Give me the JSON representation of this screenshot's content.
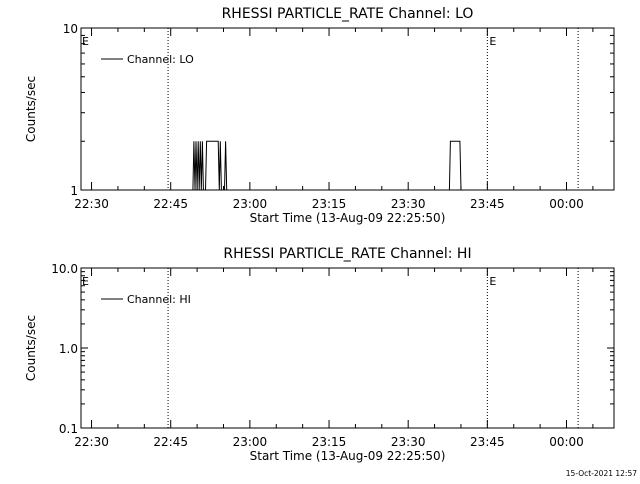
{
  "footer": {
    "timestamp": "15-Oct-2021 12:57"
  },
  "chart_data": [
    {
      "type": "line",
      "title": "RHESSI PARTICLE_RATE Channel: LO",
      "xlabel": "Start Time (13-Aug-09 22:25:50)",
      "ylabel": "Counts/sec",
      "yscale": "log",
      "ylim": [
        1,
        10
      ],
      "xlim_minutes": [
        -2,
        99
      ],
      "y_ticks": [
        {
          "v": 1,
          "label": "1"
        },
        {
          "v": 10,
          "label": "10"
        }
      ],
      "x_ticks": [
        {
          "t": 0,
          "label": "22:30"
        },
        {
          "t": 15,
          "label": "22:45"
        },
        {
          "t": 30,
          "label": "23:00"
        },
        {
          "t": 45,
          "label": "23:15"
        },
        {
          "t": 60,
          "label": "23:30"
        },
        {
          "t": 75,
          "label": "23:45"
        },
        {
          "t": 90,
          "label": "00:00"
        }
      ],
      "event_lines": [
        {
          "t": 14.5,
          "label": ""
        },
        {
          "t": 75.0,
          "label": "E"
        },
        {
          "t": 92.2,
          "label": ""
        }
      ],
      "edge_marker": "E",
      "legend": {
        "entry": "Channel: LO",
        "placement": "top-left"
      },
      "series": [
        {
          "name": "Channel: LO",
          "points": [
            [
              19.2,
              1
            ],
            [
              19.4,
              2
            ],
            [
              19.6,
              1
            ],
            [
              19.8,
              2
            ],
            [
              20.0,
              1
            ],
            [
              20.2,
              2
            ],
            [
              20.4,
              1
            ],
            [
              20.6,
              2
            ],
            [
              20.8,
              1
            ],
            [
              21.0,
              2
            ],
            [
              21.2,
              1
            ],
            [
              21.6,
              1
            ],
            [
              21.8,
              2
            ],
            [
              24.0,
              2
            ],
            [
              24.2,
              1
            ],
            [
              24.4,
              2
            ],
            [
              24.6,
              1
            ],
            [
              25.2,
              1
            ],
            [
              25.4,
              2
            ],
            [
              25.6,
              1
            ],
            [
              67.8,
              1
            ],
            [
              68.0,
              2
            ],
            [
              69.8,
              2
            ],
            [
              70.0,
              1
            ]
          ]
        }
      ]
    },
    {
      "type": "line",
      "title": "RHESSI PARTICLE_RATE Channel: HI",
      "xlabel": "Start Time (13-Aug-09 22:25:50)",
      "ylabel": "Counts/sec",
      "yscale": "log",
      "ylim": [
        0.1,
        10
      ],
      "xlim_minutes": [
        -2,
        99
      ],
      "y_ticks": [
        {
          "v": 0.1,
          "label": "0.1"
        },
        {
          "v": 1,
          "label": "1.0"
        },
        {
          "v": 10,
          "label": "10.0"
        }
      ],
      "x_ticks": [
        {
          "t": 0,
          "label": "22:30"
        },
        {
          "t": 15,
          "label": "22:45"
        },
        {
          "t": 30,
          "label": "23:00"
        },
        {
          "t": 45,
          "label": "23:15"
        },
        {
          "t": 60,
          "label": "23:30"
        },
        {
          "t": 75,
          "label": "23:45"
        },
        {
          "t": 90,
          "label": "00:00"
        }
      ],
      "event_lines": [
        {
          "t": 14.5,
          "label": ""
        },
        {
          "t": 75.0,
          "label": "E"
        },
        {
          "t": 92.2,
          "label": ""
        }
      ],
      "edge_marker": "E",
      "legend": {
        "entry": "Channel: HI",
        "placement": "top-left"
      },
      "series": [
        {
          "name": "Channel: HI",
          "points": []
        }
      ]
    }
  ]
}
